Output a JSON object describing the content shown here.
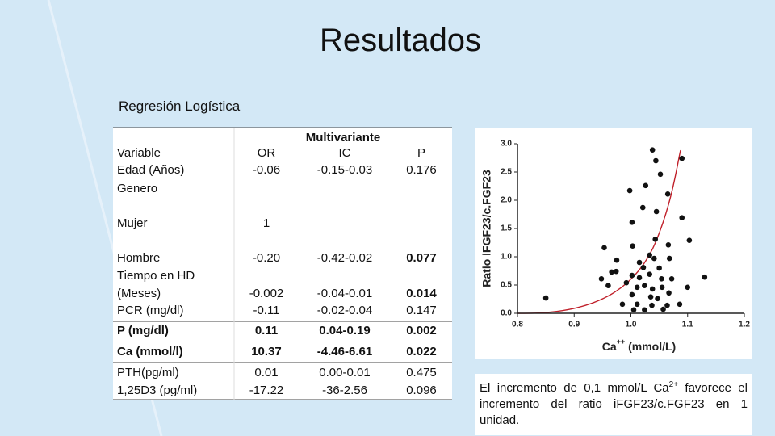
{
  "title": "Resultados",
  "subtitle": "Regresión Logística",
  "table": {
    "group_header": "Multivariante",
    "header": {
      "variable": "Variable",
      "or": "OR",
      "ic": "IC",
      "p": "P"
    },
    "rows": [
      {
        "variable": "Edad (Años)",
        "or": "-0.06",
        "ic": "-0.15-0.03",
        "p": "0.176"
      },
      {
        "variable": "Genero"
      },
      {
        "variable": "Mujer",
        "or": "1"
      },
      {
        "variable": "Hombre",
        "or": "-0.20",
        "ic": "-0.42-0.02",
        "p": "0.077"
      },
      {
        "variable": "Tiempo en HD (Meses)",
        "or": "-0.002",
        "ic": "-0.04-0.01",
        "p": "0.014"
      },
      {
        "variable": "PCR (mg/dl)",
        "or": "-0.11",
        "ic": "-0.02-0.04",
        "p": "0.147"
      },
      {
        "variable": "P (mg/dl)",
        "or": "0.11",
        "ic": "0.04-0.19",
        "p": "0.002"
      },
      {
        "variable": "Ca (mmol/l)",
        "or": "10.37",
        "ic": "-4.46-6.61",
        "p": "0.022"
      },
      {
        "variable": "PTH(pg/ml)",
        "or": "0.01",
        "ic": "0.00-0.01",
        "p": "0.475"
      },
      {
        "variable": "1,25D3  (pg/ml)",
        "or": "-17.22",
        "ic": "-36-2.56",
        "p": "0.096"
      }
    ]
  },
  "chart": {
    "type": "scatter",
    "ylabel": "Ratio iFGF23/c.FGF23",
    "xlabel": {
      "text": "Ca",
      "sup": "++",
      "rest": " (mmol/L)"
    },
    "xlim": [
      0.8,
      1.2
    ],
    "ylim": [
      0,
      3
    ],
    "xticks": [
      0.8,
      0.9,
      {
        "value": 1,
        "label": "1.0"
      },
      1.1,
      1.2
    ],
    "yticks": [
      {
        "value": 0,
        "label": "0.0"
      },
      0.5,
      {
        "value": 1,
        "label": "1.0"
      },
      1.5,
      {
        "value": 2,
        "label": "2.0"
      },
      2.5,
      {
        "value": 3,
        "label": "3.0"
      }
    ],
    "color": "#111111",
    "x": [
      0.85,
      0.953,
      0.96,
      0.966,
      1.038,
      1.09,
      1.044,
      1.052,
      1.026,
      0.998,
      1.065,
      1.021,
      1.045,
      1.002,
      1.09,
      1.043,
      1.066,
      1.103,
      1.003,
      1.033,
      1.041,
      1.068,
      0.975,
      1.015,
      1.13,
      1.1,
      0.974,
      0.948,
      0.992,
      1.015,
      1.033,
      1.054,
      1.072,
      1.011,
      1.024,
      1.038,
      1.055,
      1.002,
      1.035,
      1.047,
      1.067,
      0.985,
      1.011,
      1.037,
      1.064,
      1.086,
      1.005,
      1.024,
      1.057,
      1.022,
      1.05,
      1.002
    ],
    "y": [
      0.27,
      1.16,
      0.49,
      0.73,
      2.89,
      2.74,
      2.7,
      2.46,
      2.26,
      2.17,
      2.11,
      1.87,
      1.8,
      1.61,
      1.69,
      1.31,
      1.21,
      1.29,
      1.19,
      1.03,
      0.97,
      0.97,
      0.94,
      0.9,
      0.64,
      0.46,
      0.74,
      0.61,
      0.54,
      0.63,
      0.69,
      0.61,
      0.61,
      0.46,
      0.49,
      0.43,
      0.46,
      0.33,
      0.29,
      0.26,
      0.36,
      0.16,
      0.16,
      0.14,
      0.14,
      0.16,
      0.06,
      0.06,
      0.07,
      0.81,
      0.8,
      0.67
    ]
  },
  "caption": {
    "before": "El incremento de 0,1 mmol/L Ca",
    "sup": "2+",
    "after": " favorece el incremento del ratio iFGF23/c.FGF23 en 1 unidad."
  }
}
